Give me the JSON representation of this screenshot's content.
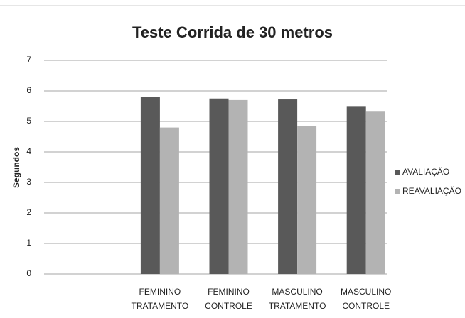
{
  "chart_data": {
    "type": "bar",
    "title": "Teste Corrida de 30 metros",
    "y_label": "Segundos",
    "categories": [
      null,
      "FEMININO TRATAMENTO",
      "FEMININO CONTROLE",
      "MASCULINO TRATAMENTO",
      "MASCULINO CONTROLE"
    ],
    "series": [
      {
        "name": "AVALIAÇÃO",
        "color": "#595959",
        "values": [
          null,
          5.8,
          5.75,
          5.72,
          5.48
        ]
      },
      {
        "name": "REAVALIAÇÃO",
        "color": "#b3b3b3",
        "values": [
          null,
          4.8,
          5.7,
          4.85,
          5.32
        ]
      }
    ],
    "ylim": [
      0,
      7
    ],
    "yticks": [
      0,
      1,
      2,
      3,
      4,
      5,
      6,
      7
    ],
    "grid": true,
    "legend": "right"
  }
}
